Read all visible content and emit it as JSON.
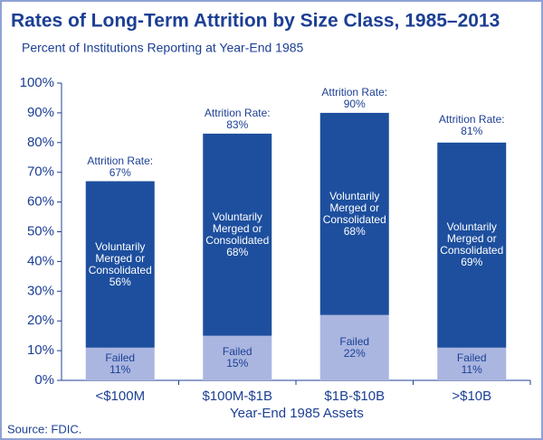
{
  "chart_data": {
    "type": "stacked_bar",
    "title": "Rates of Long-Term Attrition by Size Class, 1985–2013",
    "subtitle": "Percent of Institutions Reporting at Year-End 1985",
    "x_label": "Year-End 1985 Assets",
    "source": "Source: FDIC.",
    "categories": [
      "<$100M",
      "$100M-$1B",
      "$1B-$10B",
      ">$10B"
    ],
    "series": [
      {
        "name": "Failed",
        "color": "#aab6e0",
        "text_color": "#1c3f94",
        "values": [
          11,
          15,
          22,
          11
        ],
        "value_labels": [
          "11%",
          "15%",
          "22%",
          "11%"
        ]
      },
      {
        "name": "Voluntarily Merged or Consolidated",
        "color": "#1d4f9e",
        "text_color": "#ffffff",
        "values": [
          56,
          68,
          68,
          69
        ],
        "value_labels": [
          "56%",
          "68%",
          "68%",
          "69%"
        ]
      }
    ],
    "total_label": "Attrition Rate:",
    "totals": [
      67,
      83,
      90,
      81
    ],
    "total_value_labels": [
      "67%",
      "83%",
      "90%",
      "81%"
    ],
    "ylim": [
      0,
      100
    ],
    "yticks": [
      {
        "value": 0,
        "label": "0%"
      },
      {
        "value": 10,
        "label": "10%"
      },
      {
        "value": 20,
        "label": "20%"
      },
      {
        "value": 30,
        "label": "30%"
      },
      {
        "value": 40,
        "label": "40%"
      },
      {
        "value": 50,
        "label": "50%"
      },
      {
        "value": 60,
        "label": "60%"
      },
      {
        "value": 70,
        "label": "70%"
      },
      {
        "value": 80,
        "label": "80%"
      },
      {
        "value": 90,
        "label": "90%"
      },
      {
        "value": 100,
        "label": "100%"
      }
    ],
    "grid": false
  }
}
